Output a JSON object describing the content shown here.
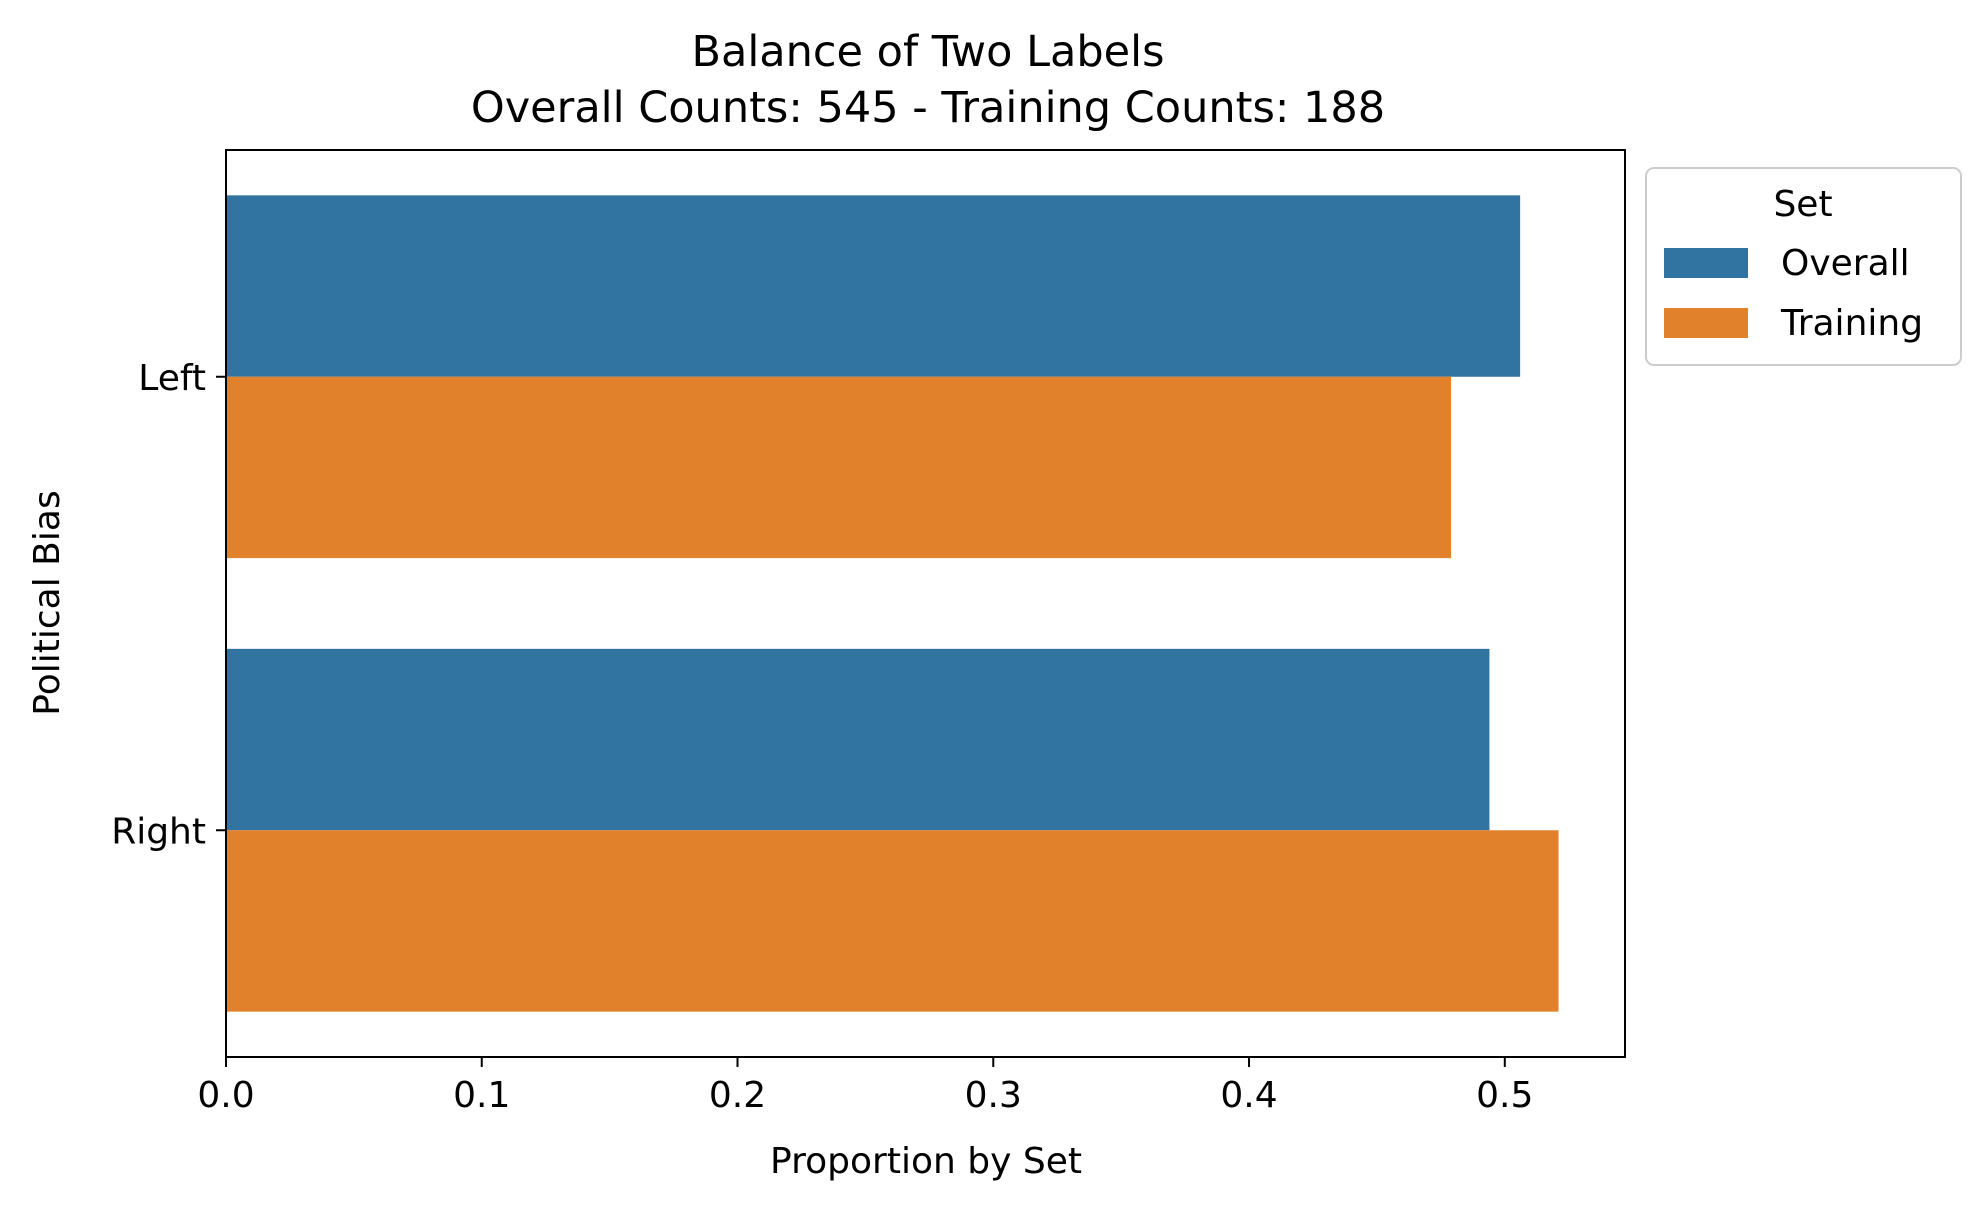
{
  "chart_data": {
    "type": "bar",
    "orientation": "horizontal",
    "title": "Balance of Two Labels",
    "subtitle": "Overall Counts: 545 - Training Counts: 188",
    "xlabel": "Proportion by Set",
    "ylabel": "Political Bias",
    "xlim": [
      0.0,
      0.547
    ],
    "x_ticks": [
      "0.0",
      "0.1",
      "0.2",
      "0.3",
      "0.4",
      "0.5"
    ],
    "x_tick_values": [
      0.0,
      0.1,
      0.2,
      0.3,
      0.4,
      0.5
    ],
    "categories": [
      "Left",
      "Right"
    ],
    "series": [
      {
        "name": "Overall",
        "color": "#3274a1",
        "values": [
          0.506,
          0.494
        ]
      },
      {
        "name": "Training",
        "color": "#e1812c",
        "values": [
          0.479,
          0.521
        ]
      }
    ],
    "legend": {
      "title": "Set",
      "placement": "outside-top-right"
    },
    "grid": false
  }
}
